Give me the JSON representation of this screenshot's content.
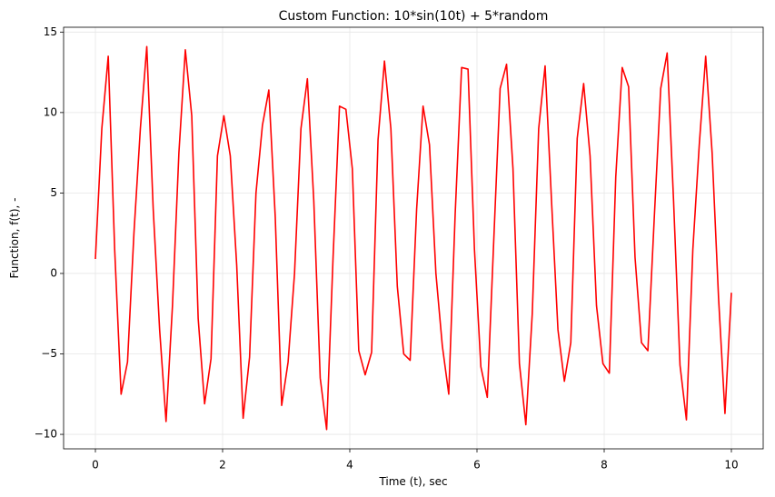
{
  "chart_data": {
    "type": "line",
    "title": "Custom Function: 10*sin(10t) + 5*random",
    "x_label": "Time (t), sec",
    "y_label": "Function, f(t), -",
    "x": [
      0,
      0.101,
      0.202,
      0.303,
      0.404,
      0.505,
      0.606,
      0.707,
      0.808,
      0.909,
      1.01,
      1.111,
      1.212,
      1.313,
      1.414,
      1.515,
      1.616,
      1.717,
      1.818,
      1.919,
      2.02,
      2.121,
      2.222,
      2.323,
      2.424,
      2.525,
      2.626,
      2.727,
      2.828,
      2.929,
      3.03,
      3.131,
      3.232,
      3.333,
      3.434,
      3.535,
      3.636,
      3.737,
      3.838,
      3.939,
      4.04,
      4.141,
      4.242,
      4.343,
      4.444,
      4.545,
      4.646,
      4.747,
      4.848,
      4.949,
      5.051,
      5.152,
      5.253,
      5.354,
      5.455,
      5.556,
      5.657,
      5.758,
      5.859,
      5.96,
      6.061,
      6.162,
      6.263,
      6.364,
      6.465,
      6.566,
      6.667,
      6.768,
      6.869,
      6.97,
      7.071,
      7.172,
      7.273,
      7.374,
      7.475,
      7.576,
      7.677,
      7.778,
      7.879,
      7.98,
      8.081,
      8.182,
      8.283,
      8.384,
      8.485,
      8.586,
      8.687,
      8.788,
      8.889,
      8.99,
      9.091,
      9.192,
      9.293,
      9.394,
      9.495,
      9.596,
      9.697,
      9.798,
      9.899,
      10
    ],
    "series": [
      {
        "color": "#ff0000",
        "values": [
          0.9,
          9,
          13.5,
          1.5,
          -7.5,
          -5.5,
          2.5,
          9,
          14.1,
          4,
          -3.5,
          -9.2,
          -2,
          7.5,
          13.9,
          9.8,
          -2.8,
          -8.1,
          -5.3,
          7.3,
          9.8,
          7.3,
          0.5,
          -9,
          -5.2,
          5,
          9.2,
          11.4,
          3.5,
          -8.2,
          -5.5,
          0,
          9,
          12.1,
          4.5,
          -6.5,
          -9.7,
          1,
          10.4,
          10.2,
          6.5,
          -4.8,
          -6.3,
          -4.9,
          8.3,
          13.2,
          9,
          -0.8,
          -5,
          -5.4,
          4,
          10.4,
          8,
          0,
          -4.5,
          -7.5,
          3.7,
          12.8,
          12.7,
          1.5,
          -5.8,
          -7.7,
          2,
          11.5,
          13,
          6.5,
          -5.6,
          -9.4,
          -2.5,
          9,
          12.9,
          4.5,
          -3.5,
          -6.7,
          -4.3,
          8.4,
          11.8,
          7.3,
          -2,
          -5.6,
          -6.2,
          6,
          12.8,
          11.6,
          1,
          -4.3,
          -4.8,
          3.5,
          11.5,
          13.7,
          4.5,
          -5.7,
          -9.1,
          1.5,
          8,
          13.5,
          7.5,
          -1.5,
          -8.7,
          -1.2
        ]
      }
    ],
    "xlim": [
      -0.5,
      10.5
    ],
    "ylim": [
      -10.9,
      15.3
    ],
    "xticks": [
      0,
      2,
      4,
      6,
      8,
      10
    ],
    "yticks": [
      {
        "value": -10,
        "label": "−10"
      },
      {
        "value": -5,
        "label": "−5"
      },
      0,
      5,
      10,
      15
    ],
    "grid": true
  }
}
